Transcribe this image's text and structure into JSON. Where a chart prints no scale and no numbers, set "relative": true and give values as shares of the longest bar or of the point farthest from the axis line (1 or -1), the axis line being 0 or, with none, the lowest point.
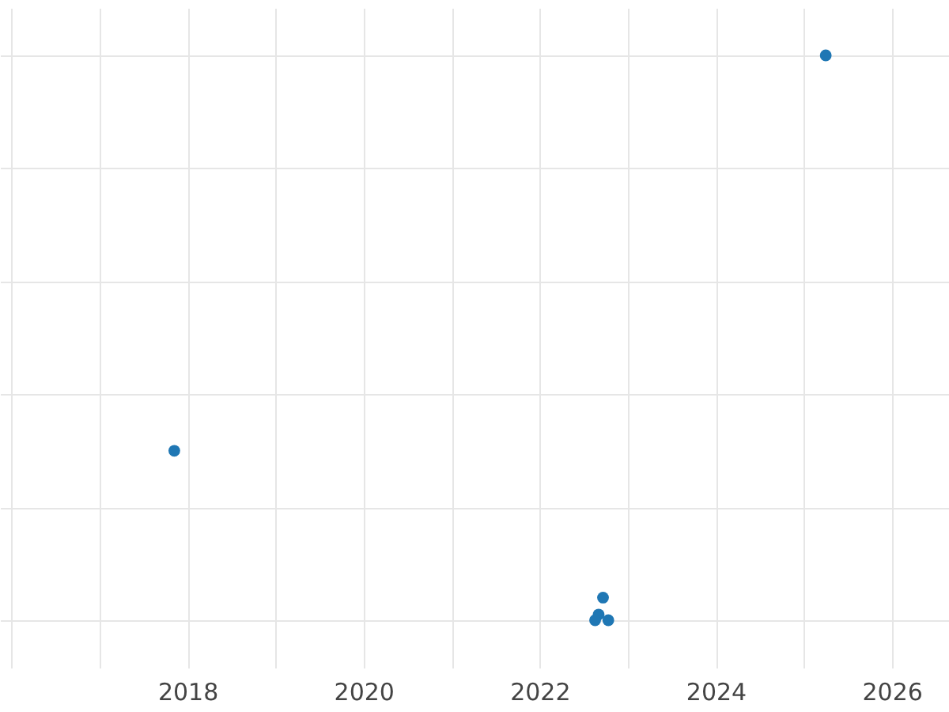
{
  "chart_data": {
    "type": "scatter",
    "relative": true,
    "x": [
      2017.85,
      2025.25,
      2022.72,
      2022.67,
      2022.63,
      2022.78
    ],
    "series": [
      {
        "color": "#1f77b4",
        "values": [
          0.3,
          1,
          0.04,
          0.01,
          0,
          0
        ]
      }
    ],
    "xlim": [
      2015.87,
      2026.65
    ],
    "xticks": [
      {
        "value": 2016,
        "label": null
      },
      {
        "value": 2017,
        "label": null
      },
      2018,
      {
        "value": 2019,
        "label": null
      },
      2020,
      {
        "value": 2021,
        "label": null
      },
      2022,
      {
        "value": 2023,
        "label": null
      },
      2024,
      {
        "value": 2025,
        "label": null
      },
      2026
    ],
    "grid": true,
    "marker": "circle"
  }
}
